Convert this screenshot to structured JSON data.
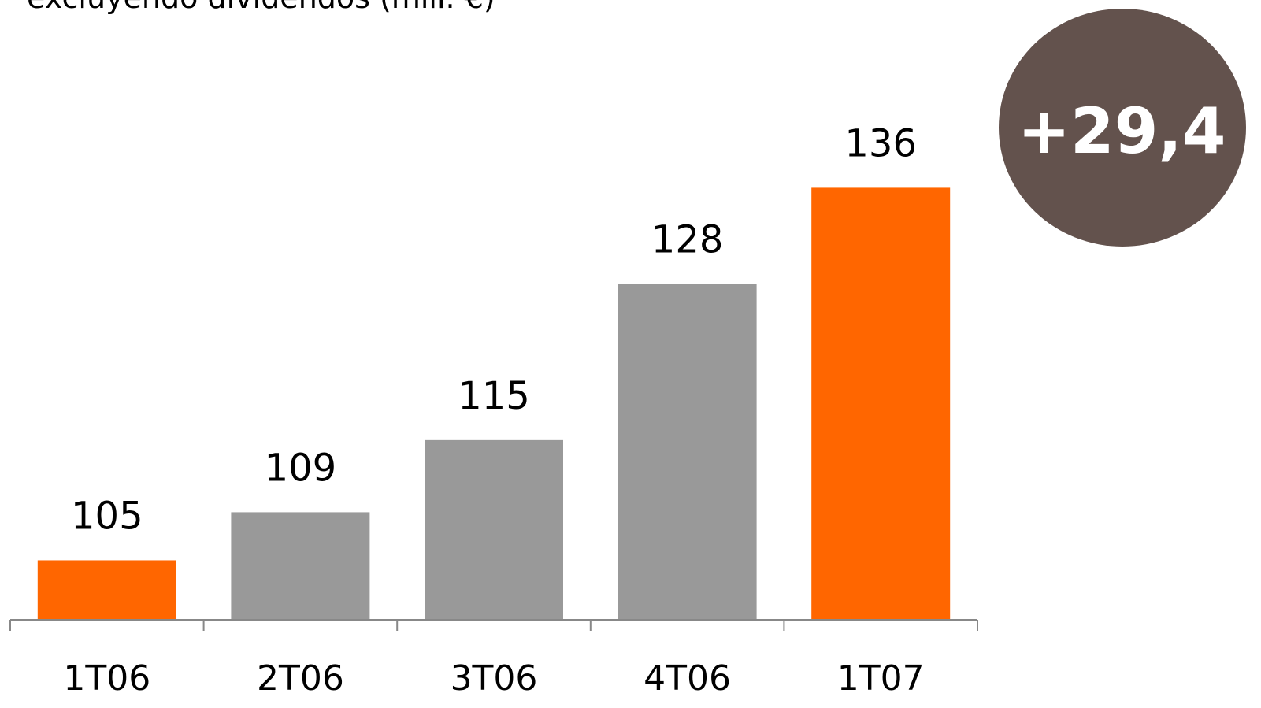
{
  "chart_data": {
    "type": "bar",
    "title": "excluyendo dividendos  (mill. €)",
    "categories": [
      "1T06",
      "2T06",
      "3T06",
      "4T06",
      "1T07"
    ],
    "values": [
      105,
      109,
      115,
      128,
      136
    ],
    "bar_colors": [
      "#ff6600",
      "#999999",
      "#999999",
      "#999999",
      "#ff6600"
    ],
    "xlabel": "",
    "ylabel": "",
    "grid": false
  },
  "badge": {
    "text": "+29,4",
    "color": "#63524d"
  },
  "colors": {
    "highlight": "#ff6600",
    "neutral": "#999999",
    "axis": "#888888"
  }
}
